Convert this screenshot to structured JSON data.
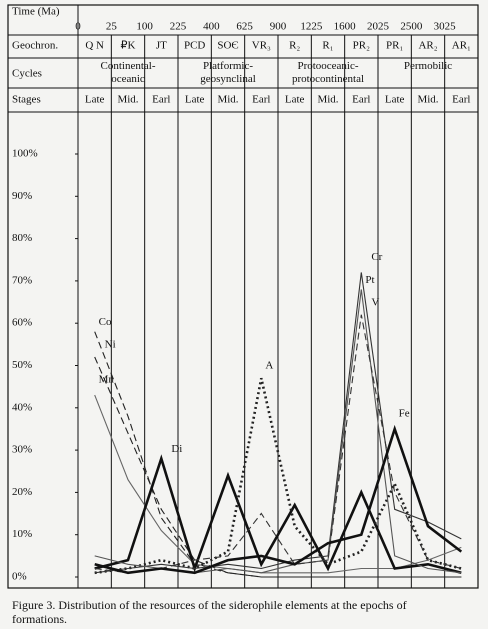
{
  "chart_data": {
    "type": "line",
    "x_label": "Time (Ma)",
    "time_ticks": [
      0,
      25,
      100,
      225,
      400,
      625,
      900,
      1225,
      1600,
      2025,
      2500,
      3025
    ],
    "geochron_label": "Geochron.",
    "categories": [
      "Q N",
      "₽K",
      "JT",
      "PCD",
      "SOЄ",
      "VR₃",
      "R₂",
      "R₁",
      "PR₂",
      "PR₁",
      "AR₂",
      "AR₁"
    ],
    "cycles_label": "Cycles",
    "cycles": [
      "Continental-oceanic",
      "Platformic-geosynclinal",
      "Protooceanic-protocontinental",
      "Permobilic"
    ],
    "stages_label": "Stages",
    "stages": [
      "Late",
      "Mid.",
      "Earl",
      "Late",
      "Mid.",
      "Earl",
      "Late",
      "Mid.",
      "Earl",
      "Late",
      "Mid.",
      "Earl"
    ],
    "ylim": [
      0,
      100
    ],
    "yticks": [
      {
        "value": 0,
        "label": "0%"
      },
      {
        "value": 10,
        "label": "10%"
      },
      {
        "value": 20,
        "label": "20%"
      },
      {
        "value": 30,
        "label": "30%"
      },
      {
        "value": 40,
        "label": "40%"
      },
      {
        "value": 50,
        "label": "50%"
      },
      {
        "value": 60,
        "label": "60%"
      },
      {
        "value": 70,
        "label": "70%"
      },
      {
        "value": 80,
        "label": "80%"
      },
      {
        "value": 90,
        "label": "90%"
      },
      {
        "value": 100,
        "label": "100%"
      }
    ],
    "series": [
      {
        "name": "Co",
        "color": "#222",
        "style": "dashed",
        "weight": "thin",
        "values": [
          58,
          38,
          14,
          3,
          1,
          0,
          0,
          0,
          0,
          0,
          0,
          0
        ]
      },
      {
        "name": "Ni",
        "color": "#222",
        "style": "dashed",
        "weight": "thin",
        "values": [
          52,
          34,
          16,
          4,
          1,
          0,
          0,
          0,
          0,
          0,
          0,
          0
        ]
      },
      {
        "name": "Mn",
        "color": "#666",
        "style": "solid",
        "weight": "thin",
        "values": [
          43,
          23,
          11,
          3,
          2,
          1,
          1,
          1,
          2,
          2,
          4,
          7
        ]
      },
      {
        "name": "Di",
        "color": "#111",
        "style": "solid",
        "weight": "thick",
        "values": [
          2,
          4,
          28,
          2,
          24,
          3,
          17,
          2,
          20,
          2,
          3,
          1
        ]
      },
      {
        "name": "A",
        "color": "#222",
        "style": "dotted",
        "weight": "thick",
        "values": [
          1,
          2,
          4,
          2,
          6,
          47,
          12,
          3,
          6,
          22,
          4,
          2
        ]
      },
      {
        "name": "Cr",
        "color": "#333",
        "style": "solid",
        "weight": "thin",
        "values": [
          1,
          2,
          3,
          2,
          3,
          2,
          4,
          5,
          72,
          16,
          13,
          9
        ]
      },
      {
        "name": "Pt",
        "color": "#555",
        "style": "solid",
        "weight": "thin",
        "values": [
          5,
          3,
          2,
          1,
          2,
          1,
          3,
          4,
          68,
          5,
          2,
          1
        ]
      },
      {
        "name": "V",
        "color": "#333",
        "style": "dashed",
        "weight": "thin",
        "values": [
          2,
          1,
          2,
          4,
          5,
          15,
          3,
          4,
          62,
          20,
          4,
          2
        ]
      },
      {
        "name": "Fe",
        "color": "#111",
        "style": "solid",
        "weight": "thick",
        "values": [
          3,
          1,
          2,
          1,
          4,
          5,
          3,
          8,
          10,
          35,
          12,
          6
        ]
      }
    ],
    "caption": "Figure 3. Distribution of the resources of the siderophile elements at the epochs of formations."
  }
}
